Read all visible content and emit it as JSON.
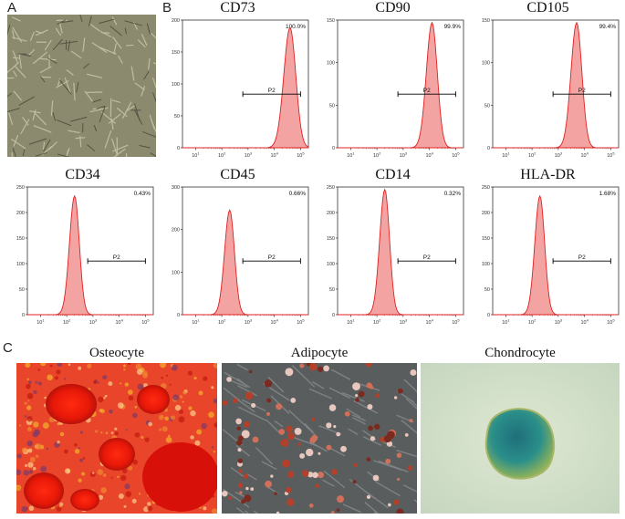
{
  "panels": {
    "a": "A",
    "b": "B",
    "c": "C"
  },
  "colors": {
    "histogram_fill": "#f4a3a3",
    "histogram_stroke": "#e02020",
    "axis": "#333333",
    "gate_line": "#000000"
  },
  "histograms": [
    {
      "marker": "CD73",
      "percent": "100.0%",
      "gate": "P2",
      "ymax": 200,
      "yticks": [
        "0",
        "50",
        "100",
        "150",
        "200"
      ],
      "peak_decade": 4.6,
      "peak_height": 0.94,
      "width_decades": 0.22,
      "gate_range": [
        2.8,
        5.0
      ]
    },
    {
      "marker": "CD90",
      "percent": "99.9%",
      "gate": "P2",
      "ymax": 150,
      "yticks": [
        "0",
        "50",
        "100",
        "150"
      ],
      "peak_decade": 4.1,
      "peak_height": 0.98,
      "width_decades": 0.2,
      "gate_range": [
        2.8,
        5.0
      ]
    },
    {
      "marker": "CD105",
      "percent": "99.4%",
      "gate": "P2",
      "ymax": 150,
      "yticks": [
        "0",
        "50",
        "100",
        "150"
      ],
      "peak_decade": 3.7,
      "peak_height": 0.98,
      "width_decades": 0.2,
      "gate_range": [
        2.8,
        5.0
      ]
    },
    {
      "marker": "CD34",
      "percent": "0.43%",
      "gate": "P2",
      "ymax": 250,
      "yticks": [
        "0",
        "50",
        "100",
        "150",
        "200",
        "250"
      ],
      "peak_decade": 2.3,
      "peak_height": 0.93,
      "width_decades": 0.18,
      "gate_range": [
        2.8,
        5.0
      ]
    },
    {
      "marker": "CD45",
      "percent": "0.66%",
      "gate": "P2",
      "ymax": 300,
      "yticks": [
        "0",
        "100",
        "200",
        "300"
      ],
      "peak_decade": 2.3,
      "peak_height": 0.82,
      "width_decades": 0.18,
      "gate_range": [
        2.8,
        5.0
      ]
    },
    {
      "marker": "CD14",
      "percent": "0.32%",
      "gate": "P2",
      "ymax": 250,
      "yticks": [
        "0",
        "50",
        "100",
        "150",
        "200",
        "250"
      ],
      "peak_decade": 2.3,
      "peak_height": 0.98,
      "width_decades": 0.18,
      "gate_range": [
        2.8,
        5.0
      ]
    },
    {
      "marker": "HLA-DR",
      "percent": "1.68%",
      "gate": "P2",
      "ymax": 250,
      "yticks": [
        "0",
        "50",
        "100",
        "150",
        "200",
        "250"
      ],
      "peak_decade": 2.3,
      "peak_height": 0.93,
      "width_decades": 0.18,
      "gate_range": [
        2.8,
        5.0
      ]
    }
  ],
  "x_axis": {
    "decades": [
      "1",
      "2",
      "3",
      "4",
      "5"
    ]
  },
  "photos": [
    {
      "title": "Osteocyte",
      "stain": "alizarin-red"
    },
    {
      "title": "Adipocyte",
      "stain": "oil-red-o"
    },
    {
      "title": "Chondrocyte",
      "stain": "alcian-blue"
    }
  ]
}
